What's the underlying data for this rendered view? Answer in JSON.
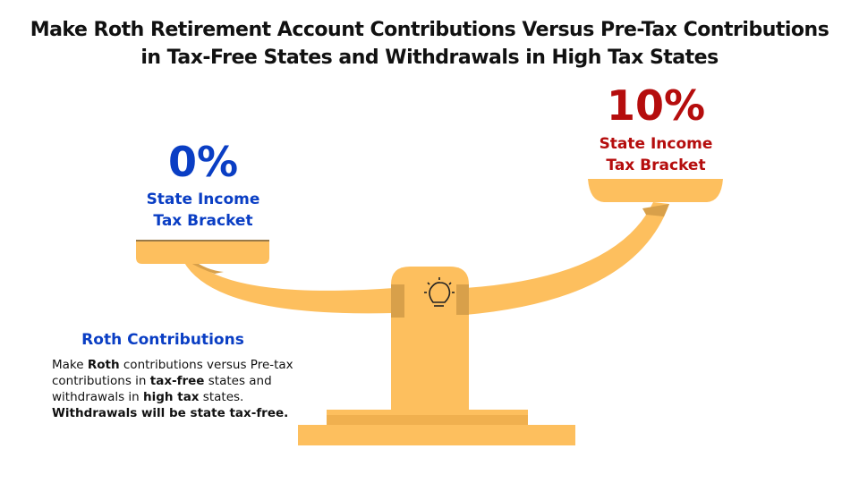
{
  "title": {
    "lines": [
      "Make Roth Retirement Account Contributions Versus Pre-Tax Contributions",
      "in Tax-Free States and Withdrawals in High Tax States"
    ]
  },
  "left_pan": {
    "percent": "0%",
    "label_lines": [
      "State Income",
      "Tax Bracket"
    ]
  },
  "right_pan": {
    "percent": "10%",
    "label_lines": [
      "State Income",
      "Tax Bracket"
    ]
  },
  "note": {
    "heading": "Roth Contributions",
    "body": [
      {
        "text": "Make ",
        "bold": false
      },
      {
        "text": "Roth",
        "bold": true
      },
      {
        "text": " contributions versus Pre-tax contributions in ",
        "bold": false
      },
      {
        "text": "tax-free",
        "bold": true
      },
      {
        "text": " states and withdrawals in ",
        "bold": false
      },
      {
        "text": "high tax",
        "bold": true
      },
      {
        "text": " states. ",
        "bold": false
      },
      {
        "text": "Withdrawals will be state tax-free.",
        "bold": true
      }
    ]
  }
}
